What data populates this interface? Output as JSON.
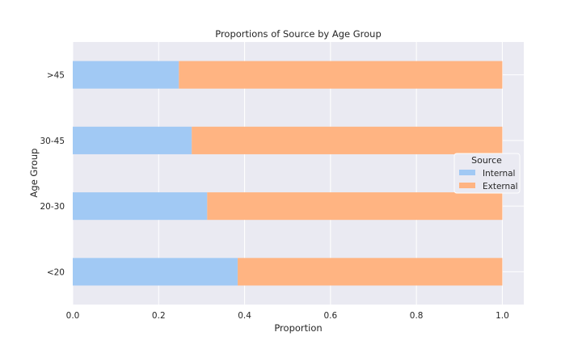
{
  "chart_data": {
    "type": "bar",
    "orientation": "horizontal",
    "stacked": true,
    "title": "Proportions of Source by Age Group",
    "xlabel": "Proportion",
    "ylabel": "Age Group",
    "categories": [
      "<20",
      "20-30",
      "30-45",
      ">45"
    ],
    "series": [
      {
        "name": "Internal",
        "values": [
          0.384,
          0.313,
          0.277,
          0.247
        ]
      },
      {
        "name": "External",
        "values": [
          0.616,
          0.687,
          0.723,
          0.753
        ]
      }
    ],
    "xlim": [
      0.0,
      1.05
    ],
    "xticks": [
      "0.0",
      "0.2",
      "0.4",
      "0.6",
      "0.8",
      "1.0"
    ],
    "xtick_values": [
      0,
      0.2,
      0.4,
      0.6,
      0.8,
      1.0
    ],
    "legend": {
      "title": "Source",
      "placement": "center-right",
      "entries": [
        "Internal",
        "External"
      ]
    },
    "grid": true,
    "colors": {
      "Internal": "#a1c9f4",
      "External": "#ffb482",
      "background": "#eaeaf2",
      "grid": "#ffffff"
    }
  }
}
